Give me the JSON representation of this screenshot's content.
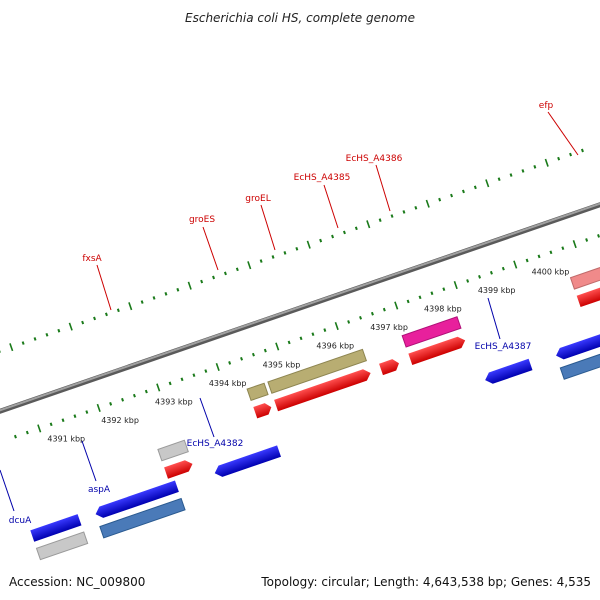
{
  "title": "Escherichia coli HS, complete genome",
  "footer": {
    "accession": "Accession: NC_009800",
    "topology": "Topology: circular; Length: 4,643,538 bp; Genes: 4,535"
  },
  "colors": {
    "forward_label": "#cc0000",
    "reverse_label": "#0000aa",
    "backbone": "#808080",
    "tick": "#1a7a1a"
  },
  "scale": {
    "unit": "kbp",
    "ticks": [
      {
        "kbp": 4391,
        "label": "4391 kbp"
      },
      {
        "kbp": 4392,
        "label": "4392 kbp"
      },
      {
        "kbp": 4393,
        "label": "4393 kbp"
      },
      {
        "kbp": 4394,
        "label": "4394 kbp"
      },
      {
        "kbp": 4395,
        "label": "4395 kbp"
      },
      {
        "kbp": 4396,
        "label": "4396 kbp"
      },
      {
        "kbp": 4397,
        "label": "4397 kbp"
      },
      {
        "kbp": 4398,
        "label": "4398 kbp"
      },
      {
        "kbp": 4399,
        "label": "4399 kbp"
      },
      {
        "kbp": 4400,
        "label": "4400 kbp"
      }
    ]
  },
  "genes": [
    {
      "name": "fxsA",
      "strand": "forward",
      "labeled": true
    },
    {
      "name": "groES",
      "strand": "forward",
      "labeled": true
    },
    {
      "name": "groEL",
      "strand": "forward",
      "labeled": true
    },
    {
      "name": "EcHS_A4385",
      "strand": "forward",
      "labeled": true
    },
    {
      "name": "EcHS_A4386",
      "strand": "forward",
      "labeled": true
    },
    {
      "name": "efp",
      "strand": "forward",
      "labeled": true
    },
    {
      "name": "dcuA",
      "strand": "reverse",
      "labeled": true
    },
    {
      "name": "aspA",
      "strand": "reverse",
      "labeled": true
    },
    {
      "name": "EcHS_A4382",
      "strand": "reverse",
      "labeled": true
    },
    {
      "name": "EcHS_A4387",
      "strand": "reverse",
      "labeled": true
    }
  ]
}
